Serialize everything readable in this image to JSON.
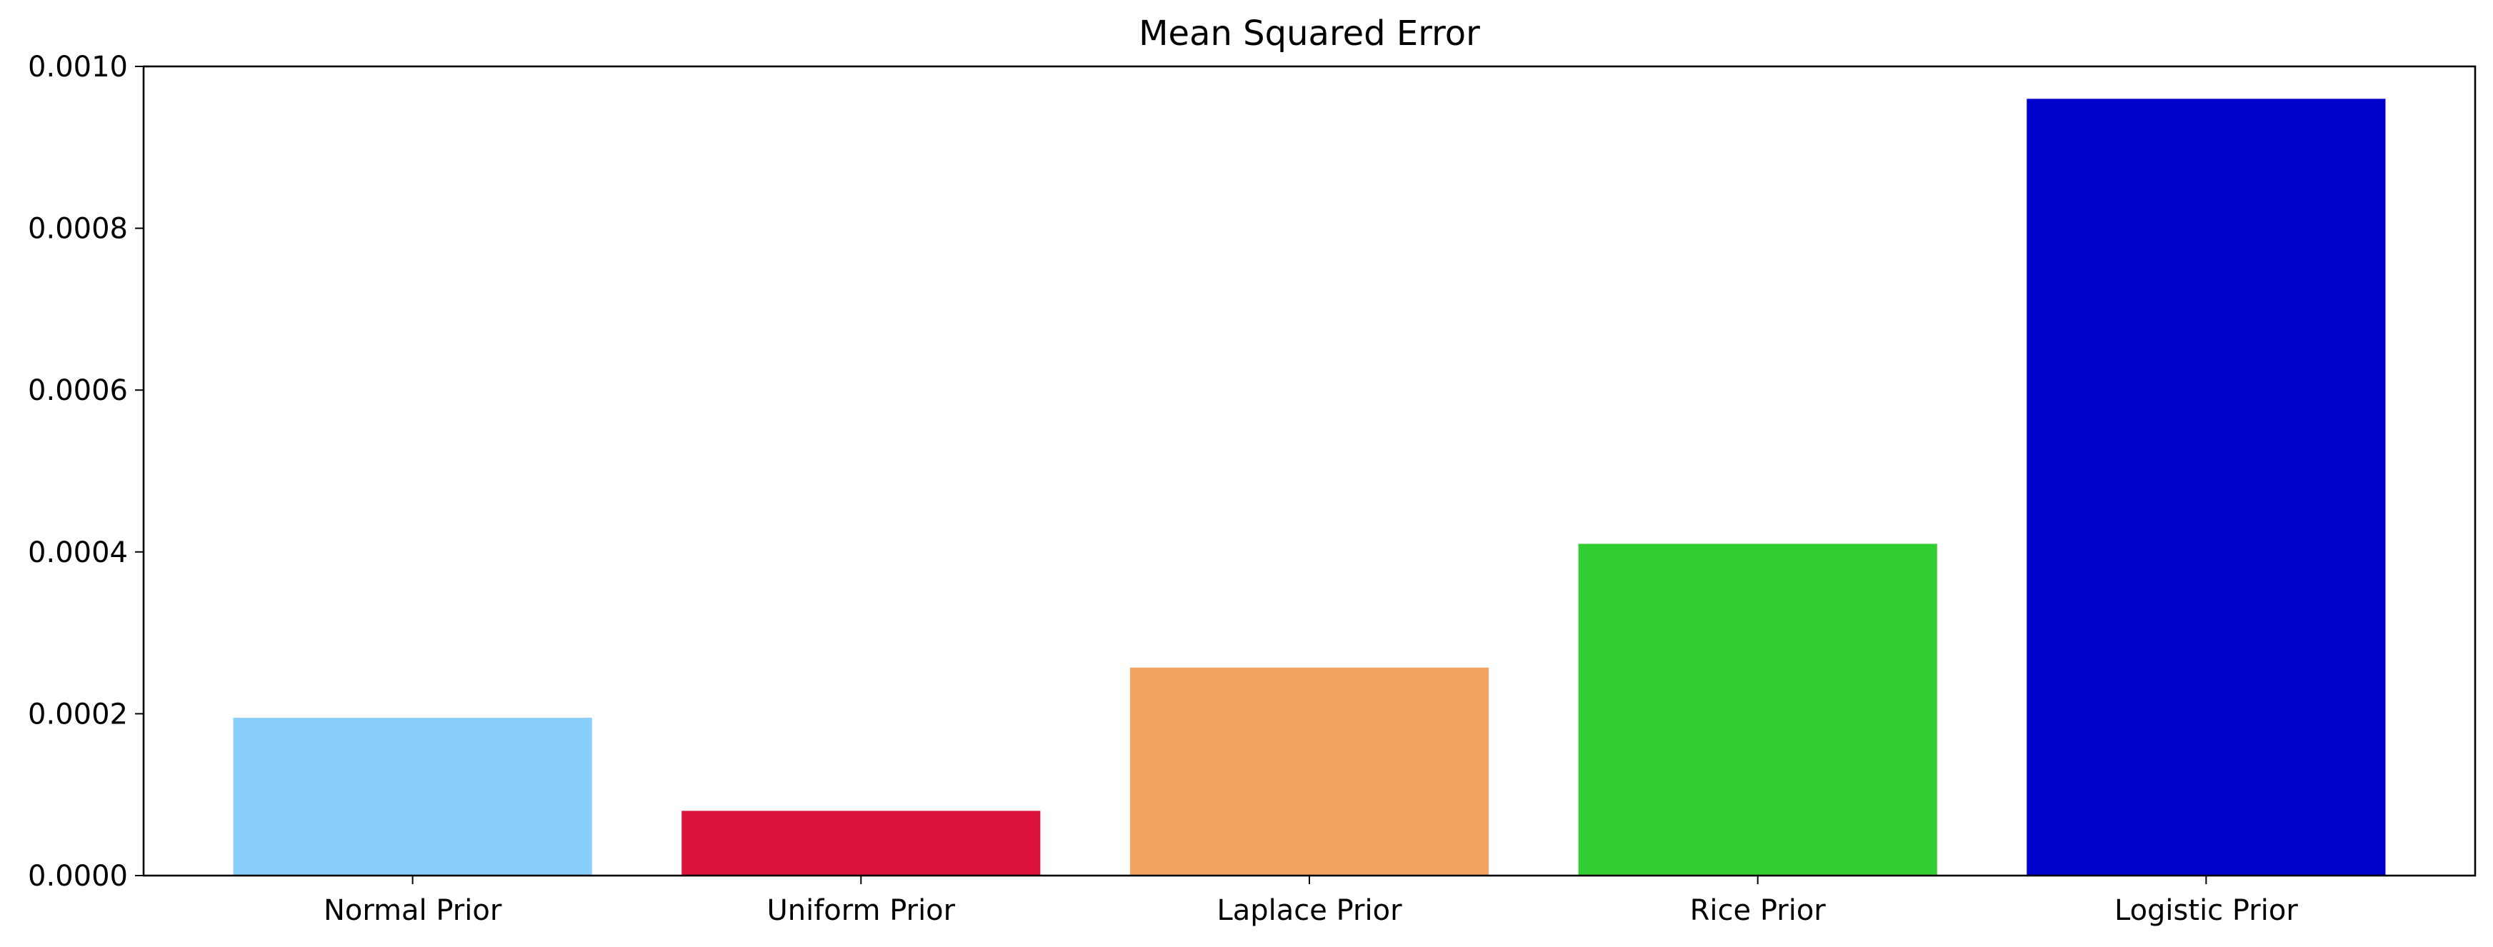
{
  "chart_data": {
    "type": "bar",
    "title": "Mean Squared Error",
    "xlabel": "",
    "ylabel": "",
    "categories": [
      "Normal Prior",
      "Uniform Prior",
      "Laplace Prior",
      "Rice Prior",
      "Logistic Prior"
    ],
    "values": [
      0.000195,
      8e-05,
      0.000257,
      0.00041,
      0.00096
    ],
    "colors": [
      "#87cefa",
      "#dc143c",
      "#f4a460",
      "#32cd32",
      "#0000cd"
    ],
    "ylim": [
      0,
      0.001
    ],
    "yticks": [
      0,
      0.0002,
      0.0004,
      0.0006,
      0.0008,
      0.001
    ],
    "ytick_labels": [
      "0.0000",
      "0.0002",
      "0.0004",
      "0.0006",
      "0.0008",
      "0.0010"
    ],
    "grid": false,
    "legend": "none"
  }
}
